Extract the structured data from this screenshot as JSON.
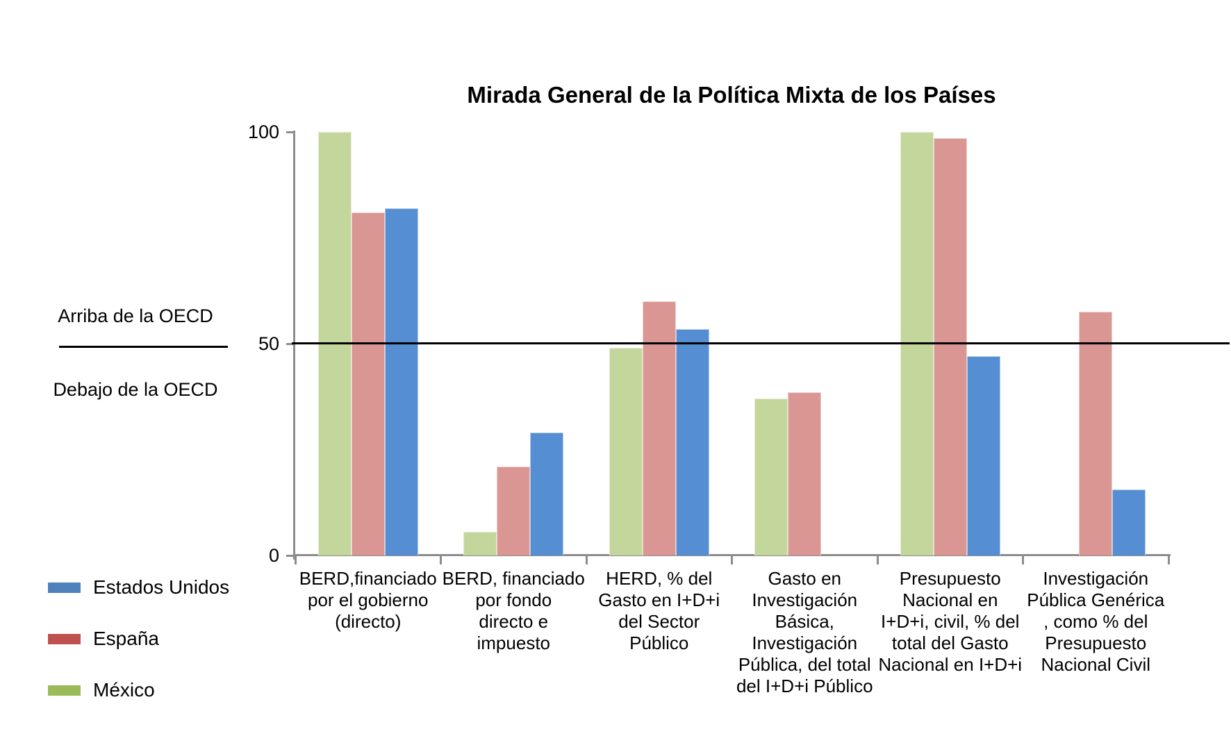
{
  "chart_data": {
    "type": "bar",
    "title": "Mirada General de la Política Mixta de los Países",
    "categories": [
      "BERD,financiado\npor el gobierno\n(directo)",
      "BERD, financiado\npor fondo\ndirecto e\nimpuesto",
      "HERD, % del\nGasto en I+D+i\ndel Sector\nPúblico",
      "Gasto en\nInvestigación\nBásica,\nInvestigación\nPública, del total\ndel I+D+i Público",
      "Presupuesto\nNacional en\nI+D+i, civil, % del\ntotal del Gasto\nNacional en I+D+i",
      "Investigación\nPública Genérica\n, como % del\nPresupuesto\nNacional Civil"
    ],
    "series": [
      {
        "key": "mexico",
        "name": "México",
        "color": "#C3D69B",
        "values": [
          100,
          5.5,
          49,
          37,
          100,
          null
        ]
      },
      {
        "key": "espana",
        "name": "España",
        "color": "#D99693",
        "values": [
          81,
          21,
          60,
          38.5,
          98.5,
          57.5
        ]
      },
      {
        "key": "eeuu",
        "name": "Estados Unidos",
        "color": "#568ED3",
        "values": [
          82,
          29,
          53.5,
          null,
          47,
          15.5
        ]
      }
    ],
    "ylim": [
      0,
      100
    ],
    "y_ticks": [
      {
        "value": 100,
        "label": "100"
      },
      {
        "value": 50,
        "label": "50"
      },
      {
        "value": 0,
        "label": "0"
      }
    ],
    "grid": false,
    "legend_position": "bottom-left",
    "ref_line": {
      "value": 50,
      "above_label": "Arriba de la OECD",
      "below_label": "Debajo de la OECD"
    }
  },
  "legend": {
    "items": [
      {
        "label": "Estados Unidos",
        "color": "#4F81BD"
      },
      {
        "label": "España",
        "color": "#C0504D"
      },
      {
        "label": "México",
        "color": "#9BBB59"
      }
    ]
  },
  "colors": {
    "axis": "#8C8C8C",
    "ref_line": "#000000"
  }
}
